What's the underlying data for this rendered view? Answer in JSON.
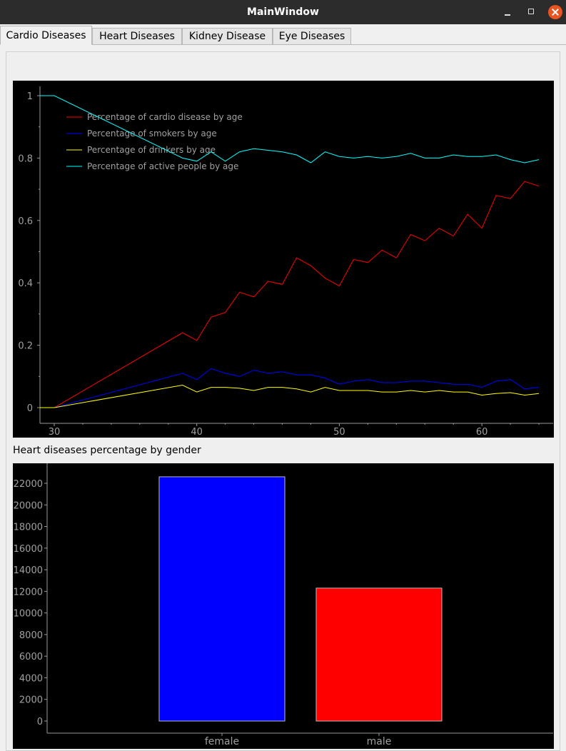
{
  "window": {
    "title": "MainWindow"
  },
  "tabs": [
    {
      "label": "Cardio Diseases",
      "active": true
    },
    {
      "label": "Heart Diseases",
      "active": false
    },
    {
      "label": "Kidney Disease",
      "active": false
    },
    {
      "label": "Eye Diseases",
      "active": false
    }
  ],
  "colors": {
    "titlebar": "#2c2c2c",
    "close": "#e95420",
    "chart_bg": "#000000"
  },
  "bar_chart_title": "Heart diseases percentage by gender",
  "chart_data": [
    {
      "type": "line",
      "title": "",
      "xlabel": "",
      "ylabel": "",
      "xlim": [
        29,
        65
      ],
      "ylim": [
        0,
        1
      ],
      "xticks": [
        30,
        40,
        50,
        60
      ],
      "yticks": [
        0,
        0.2,
        0.4,
        0.6,
        0.8,
        1
      ],
      "legend_position": "top-left",
      "series": [
        {
          "name": "Percentage of cardio disease by age",
          "color": "#ff0000",
          "x": [
            29,
            30,
            39,
            40,
            41,
            42,
            43,
            44,
            45,
            46,
            47,
            48,
            49,
            50,
            51,
            52,
            53,
            54,
            55,
            56,
            57,
            58,
            59,
            60,
            61,
            62,
            63,
            64
          ],
          "y": [
            0,
            0,
            0.24,
            0.215,
            0.29,
            0.305,
            0.37,
            0.355,
            0.405,
            0.395,
            0.48,
            0.455,
            0.415,
            0.39,
            0.475,
            0.465,
            0.505,
            0.48,
            0.555,
            0.535,
            0.575,
            0.55,
            0.62,
            0.575,
            0.68,
            0.67,
            0.725,
            0.71
          ]
        },
        {
          "name": "Percentage of smokers by age",
          "color": "#0000ff",
          "x": [
            29,
            30,
            39,
            40,
            41,
            42,
            43,
            44,
            45,
            46,
            47,
            48,
            49,
            50,
            51,
            52,
            53,
            54,
            55,
            56,
            57,
            58,
            59,
            60,
            61,
            62,
            63,
            64
          ],
          "y": [
            0,
            0,
            0.11,
            0.09,
            0.125,
            0.11,
            0.1,
            0.12,
            0.11,
            0.115,
            0.105,
            0.105,
            0.095,
            0.075,
            0.085,
            0.09,
            0.08,
            0.08,
            0.085,
            0.085,
            0.08,
            0.075,
            0.075,
            0.065,
            0.085,
            0.09,
            0.06,
            0.065
          ]
        },
        {
          "name": "Percentage of drinkers by age",
          "color": "#ffff00",
          "x": [
            29,
            30,
            39,
            40,
            41,
            42,
            43,
            44,
            45,
            46,
            47,
            48,
            49,
            50,
            51,
            52,
            53,
            54,
            55,
            56,
            57,
            58,
            59,
            60,
            61,
            62,
            63,
            64
          ],
          "y": [
            0,
            0,
            0.072,
            0.05,
            0.065,
            0.065,
            0.062,
            0.055,
            0.065,
            0.065,
            0.06,
            0.05,
            0.065,
            0.055,
            0.055,
            0.055,
            0.05,
            0.05,
            0.055,
            0.05,
            0.055,
            0.05,
            0.05,
            0.04,
            0.045,
            0.048,
            0.04,
            0.045
          ]
        },
        {
          "name": "Percentage of active people by age",
          "color": "#00ffff",
          "x": [
            29,
            30,
            39,
            40,
            41,
            42,
            43,
            44,
            45,
            46,
            47,
            48,
            49,
            50,
            51,
            52,
            53,
            54,
            55,
            56,
            57,
            58,
            59,
            60,
            61,
            62,
            63,
            64
          ],
          "y": [
            1,
            1,
            0.8,
            0.79,
            0.82,
            0.79,
            0.82,
            0.83,
            0.825,
            0.82,
            0.81,
            0.785,
            0.82,
            0.805,
            0.8,
            0.805,
            0.8,
            0.805,
            0.815,
            0.8,
            0.8,
            0.81,
            0.805,
            0.805,
            0.81,
            0.795,
            0.785,
            0.795
          ]
        }
      ]
    },
    {
      "type": "bar",
      "title": "Heart diseases percentage by gender",
      "xlabel": "",
      "ylabel": "",
      "categories": [
        "female",
        "male"
      ],
      "values": [
        22600,
        12300
      ],
      "colors": [
        "#0000ff",
        "#ff0000"
      ],
      "ylim": [
        0,
        23000
      ],
      "yticks": [
        0,
        2000,
        4000,
        6000,
        8000,
        10000,
        12000,
        14000,
        16000,
        18000,
        20000,
        22000
      ]
    }
  ]
}
